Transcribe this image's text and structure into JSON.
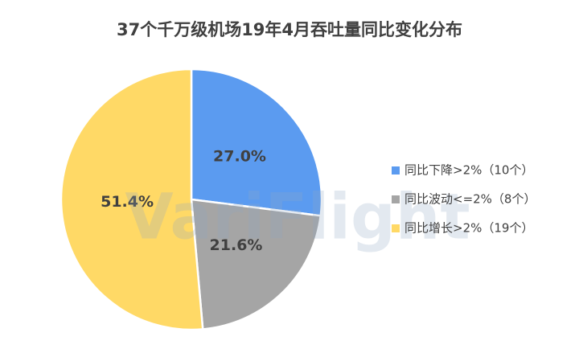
{
  "chart_data": {
    "type": "pie",
    "title": "37个千万级机场19年4月吞吐量同比变化分布",
    "watermark": "VariFlight",
    "categories": [
      "同比下降>2%（10个）",
      "同比波动<=2%（8个）",
      "同比增长>2%（19个）"
    ],
    "values": [
      27.0,
      21.6,
      51.4
    ],
    "value_labels": [
      "27.0%",
      "21.6%",
      "51.4%"
    ],
    "colors": [
      "#5b9bf0",
      "#a5a5a5",
      "#ffd966"
    ],
    "legend": "right"
  }
}
